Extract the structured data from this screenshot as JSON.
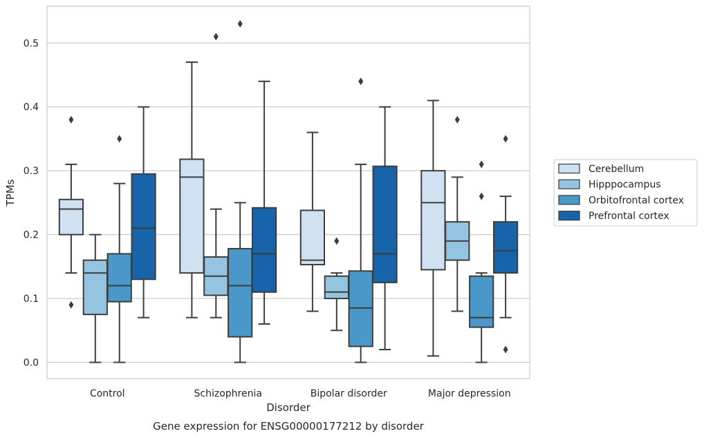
{
  "chart_data": {
    "type": "boxplot",
    "title": "Gene expression for ENSG00000177212 by disorder",
    "xlabel": "Disorder",
    "ylabel": "TPMs",
    "ylim": [
      -0.025,
      0.56
    ],
    "yticks": [
      "0.0",
      "0.1",
      "0.2",
      "0.3",
      "0.4",
      "0.5"
    ],
    "grid": "horizontal",
    "legend_position": "right",
    "categories": [
      "Control",
      "Schizophrenia",
      "Bipolar disorder",
      "Major depression"
    ],
    "series": [
      {
        "name": "Cerebellum",
        "color": "#d0e1f2",
        "boxes": [
          {
            "whislo": 0.14,
            "q1": 0.2,
            "med": 0.24,
            "q3": 0.255,
            "whishi": 0.31,
            "fliers": [
              0.38,
              0.09
            ]
          },
          {
            "whislo": 0.07,
            "q1": 0.14,
            "med": 0.29,
            "q3": 0.318,
            "whishi": 0.47,
            "fliers": []
          },
          {
            "whislo": 0.08,
            "q1": 0.153,
            "med": 0.16,
            "q3": 0.238,
            "whishi": 0.36,
            "fliers": []
          },
          {
            "whislo": 0.01,
            "q1": 0.145,
            "med": 0.25,
            "q3": 0.3,
            "whishi": 0.41,
            "fliers": []
          }
        ]
      },
      {
        "name": "Hipppocampus",
        "color": "#94c4df",
        "boxes": [
          {
            "whislo": 0.0,
            "q1": 0.075,
            "med": 0.14,
            "q3": 0.16,
            "whishi": 0.2,
            "fliers": []
          },
          {
            "whislo": 0.07,
            "q1": 0.105,
            "med": 0.135,
            "q3": 0.165,
            "whishi": 0.24,
            "fliers": [
              0.51
            ]
          },
          {
            "whislo": 0.05,
            "q1": 0.1,
            "med": 0.11,
            "q3": 0.135,
            "whishi": 0.14,
            "fliers": [
              0.19
            ]
          },
          {
            "whislo": 0.08,
            "q1": 0.16,
            "med": 0.19,
            "q3": 0.22,
            "whishi": 0.29,
            "fliers": [
              0.38
            ]
          }
        ]
      },
      {
        "name": "Orbitofrontal cortex",
        "color": "#4a98c9",
        "boxes": [
          {
            "whislo": 0.0,
            "q1": 0.095,
            "med": 0.12,
            "q3": 0.17,
            "whishi": 0.28,
            "fliers": [
              0.35
            ]
          },
          {
            "whislo": 0.0,
            "q1": 0.04,
            "med": 0.12,
            "q3": 0.178,
            "whishi": 0.25,
            "fliers": [
              0.53
            ]
          },
          {
            "whislo": 0.0,
            "q1": 0.025,
            "med": 0.085,
            "q3": 0.143,
            "whishi": 0.31,
            "fliers": [
              0.44
            ]
          },
          {
            "whislo": 0.0,
            "q1": 0.055,
            "med": 0.07,
            "q3": 0.135,
            "whishi": 0.14,
            "fliers": [
              0.26,
              0.31
            ]
          }
        ]
      },
      {
        "name": "Prefrontal cortex",
        "color": "#1764ab",
        "boxes": [
          {
            "whislo": 0.07,
            "q1": 0.13,
            "med": 0.21,
            "q3": 0.295,
            "whishi": 0.4,
            "fliers": []
          },
          {
            "whislo": 0.06,
            "q1": 0.11,
            "med": 0.17,
            "q3": 0.242,
            "whishi": 0.44,
            "fliers": []
          },
          {
            "whislo": 0.02,
            "q1": 0.125,
            "med": 0.17,
            "q3": 0.307,
            "whishi": 0.4,
            "fliers": []
          },
          {
            "whislo": 0.07,
            "q1": 0.14,
            "med": 0.175,
            "q3": 0.22,
            "whishi": 0.26,
            "fliers": [
              0.35,
              0.02
            ]
          }
        ]
      }
    ]
  }
}
